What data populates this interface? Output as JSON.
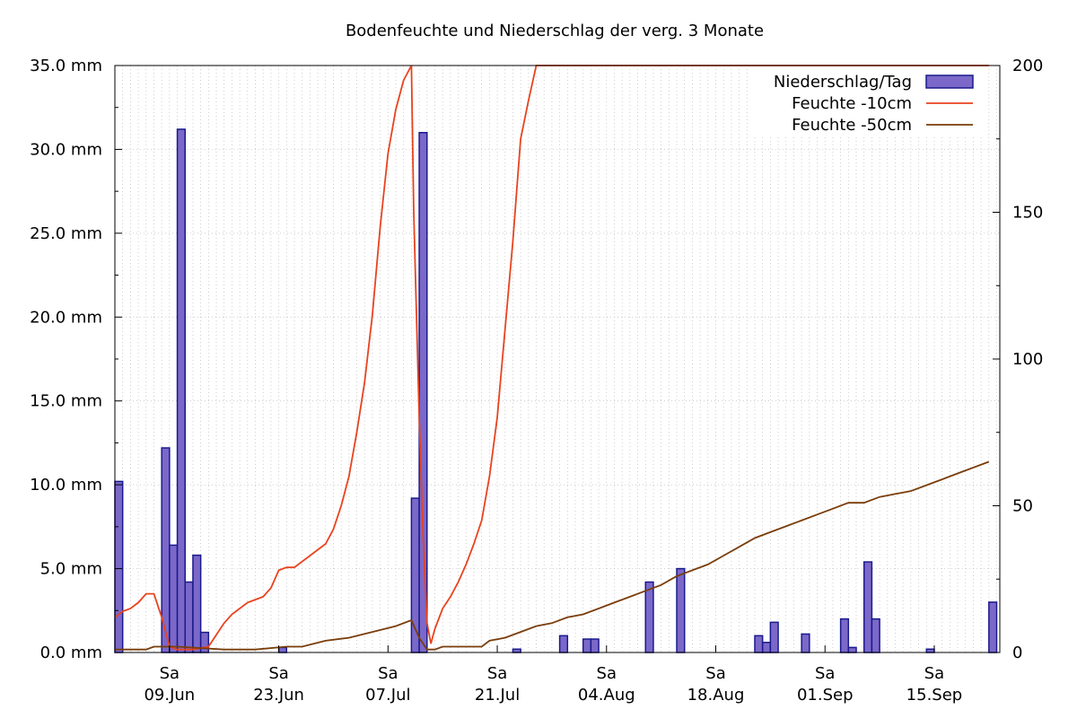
{
  "chart_data": {
    "type": "bar",
    "title": "Bodenfeuchte und Niederschlag der verg. 3 Monate",
    "y_left": {
      "ticks": [
        "0.0 mm",
        "5.0 mm",
        "10.0 mm",
        "15.0 mm",
        "20.0 mm",
        "25.0 mm",
        "30.0 mm",
        "35.0 mm"
      ],
      "range": [
        0,
        35
      ]
    },
    "y_right": {
      "ticks": [
        "0",
        "50",
        "100",
        "150",
        "200"
      ],
      "range": [
        0,
        200
      ]
    },
    "x_ticks": [
      {
        "day": "Sa",
        "date": "09.Jun"
      },
      {
        "day": "Sa",
        "date": "23.Jun"
      },
      {
        "day": "Sa",
        "date": "07.Jul"
      },
      {
        "day": "Sa",
        "date": "21.Jul"
      },
      {
        "day": "Sa",
        "date": "04.Aug"
      },
      {
        "day": "Sa",
        "date": "18.Aug"
      },
      {
        "day": "Sa",
        "date": "01.Sep"
      },
      {
        "day": "Sa",
        "date": "15.Sep"
      }
    ],
    "x_range_days": [
      0,
      97
    ],
    "x_tick_days": [
      7,
      21,
      35,
      49,
      63,
      77,
      91,
      105
    ],
    "grid": true,
    "legend_position": "top-right",
    "series": [
      {
        "name": "Niederschlag/Tag",
        "type": "bar",
        "axis": "left",
        "color": "#7b68c8",
        "points": [
          [
            0,
            10.2
          ],
          [
            6,
            12.2
          ],
          [
            7,
            6.4
          ],
          [
            8,
            31.2
          ],
          [
            9,
            4.2
          ],
          [
            10,
            5.8
          ],
          [
            11,
            1.2
          ],
          [
            21,
            0.3
          ],
          [
            38,
            9.2
          ],
          [
            39,
            31.0
          ],
          [
            51,
            0.2
          ],
          [
            57,
            1.0
          ],
          [
            60,
            0.8
          ],
          [
            61,
            0.8
          ],
          [
            68,
            4.2
          ],
          [
            72,
            5.0
          ],
          [
            82,
            1.0
          ],
          [
            83,
            0.6
          ],
          [
            84,
            1.8
          ],
          [
            88,
            1.1
          ],
          [
            93,
            2.0
          ],
          [
            94,
            0.3
          ],
          [
            96,
            5.4
          ],
          [
            97,
            2.0
          ],
          [
            104,
            0.2
          ],
          [
            112,
            3.0
          ]
        ]
      },
      {
        "name": "Feuchte -10cm",
        "type": "line",
        "axis": "right",
        "color": "#e8431f",
        "points": [
          [
            0,
            12
          ],
          [
            1,
            14
          ],
          [
            2,
            15
          ],
          [
            3,
            17
          ],
          [
            4,
            20
          ],
          [
            5,
            20
          ],
          [
            6,
            12
          ],
          [
            7,
            2
          ],
          [
            8,
            1
          ],
          [
            10,
            1
          ],
          [
            12,
            2
          ],
          [
            13,
            6
          ],
          [
            14,
            10
          ],
          [
            15,
            13
          ],
          [
            16,
            15
          ],
          [
            17,
            17
          ],
          [
            18,
            18
          ],
          [
            19,
            19
          ],
          [
            20,
            22
          ],
          [
            21,
            28
          ],
          [
            22,
            29
          ],
          [
            23,
            29
          ],
          [
            24,
            31
          ],
          [
            25,
            33
          ],
          [
            26,
            35
          ],
          [
            27,
            37
          ],
          [
            28,
            42
          ],
          [
            29,
            50
          ],
          [
            30,
            60
          ],
          [
            31,
            75
          ],
          [
            32,
            92
          ],
          [
            33,
            115
          ],
          [
            34,
            145
          ],
          [
            35,
            170
          ],
          [
            36,
            185
          ],
          [
            37,
            195
          ],
          [
            38,
            200
          ],
          [
            38.3,
            150
          ],
          [
            38.6,
            120
          ],
          [
            39,
            80
          ],
          [
            39.5,
            40
          ],
          [
            40,
            10
          ],
          [
            40.5,
            3
          ],
          [
            41,
            8
          ],
          [
            42,
            15
          ],
          [
            43,
            19
          ],
          [
            44,
            24
          ],
          [
            45,
            30
          ],
          [
            46,
            37
          ],
          [
            47,
            45
          ],
          [
            48,
            60
          ],
          [
            49,
            80
          ],
          [
            50,
            110
          ],
          [
            51,
            140
          ],
          [
            52,
            175
          ],
          [
            53,
            188
          ],
          [
            54,
            200
          ],
          [
            112,
            200
          ]
        ]
      },
      {
        "name": "Feuchte -50cm",
        "type": "line",
        "axis": "right",
        "color": "#7a3d0a",
        "points": [
          [
            0,
            1
          ],
          [
            4,
            1
          ],
          [
            5,
            2
          ],
          [
            8,
            2
          ],
          [
            14,
            1
          ],
          [
            16,
            1
          ],
          [
            18,
            1
          ],
          [
            22,
            2
          ],
          [
            24,
            2
          ],
          [
            27,
            4
          ],
          [
            30,
            5
          ],
          [
            33,
            7
          ],
          [
            36,
            9
          ],
          [
            38,
            11
          ],
          [
            39,
            5
          ],
          [
            40,
            1
          ],
          [
            41,
            1
          ],
          [
            42,
            2
          ],
          [
            47,
            2
          ],
          [
            48,
            4
          ],
          [
            50,
            5
          ],
          [
            52,
            7
          ],
          [
            54,
            9
          ],
          [
            56,
            10
          ],
          [
            58,
            12
          ],
          [
            60,
            13
          ],
          [
            62,
            15
          ],
          [
            64,
            17
          ],
          [
            66,
            19
          ],
          [
            68,
            21
          ],
          [
            70,
            23
          ],
          [
            72,
            26
          ],
          [
            74,
            28
          ],
          [
            76,
            30
          ],
          [
            78,
            33
          ],
          [
            80,
            36
          ],
          [
            82,
            39
          ],
          [
            84,
            41
          ],
          [
            86,
            43
          ],
          [
            88,
            45
          ],
          [
            90,
            47
          ],
          [
            92,
            49
          ],
          [
            94,
            51
          ],
          [
            96,
            51
          ],
          [
            98,
            53
          ],
          [
            100,
            54
          ],
          [
            102,
            55
          ],
          [
            104,
            57
          ],
          [
            106,
            59
          ],
          [
            108,
            61
          ],
          [
            110,
            63
          ],
          [
            112,
            65
          ]
        ]
      }
    ]
  }
}
